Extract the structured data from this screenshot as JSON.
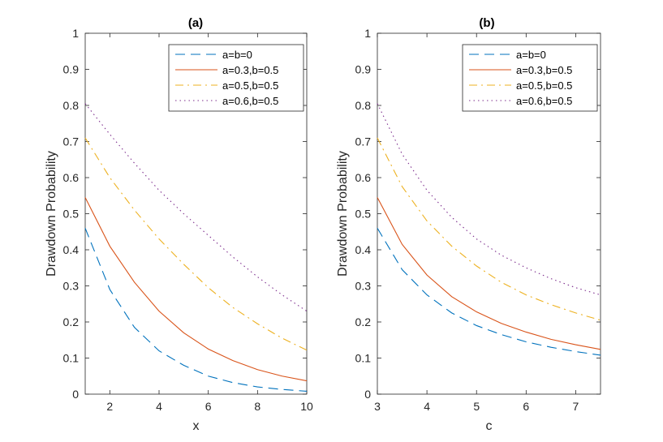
{
  "chart_data": [
    {
      "type": "line",
      "title": "(a)",
      "xlabel": "x",
      "ylabel": "Drawdown Probability",
      "xlim": [
        1,
        10
      ],
      "ylim": [
        0,
        1
      ],
      "xticks": [
        2,
        4,
        6,
        8,
        10
      ],
      "xtick_labels": [
        "2",
        "4",
        "6",
        "8",
        "10"
      ],
      "yticks": [
        0,
        0.1,
        0.2,
        0.3,
        0.4,
        0.5,
        0.6,
        0.7,
        0.8,
        0.9,
        1
      ],
      "ytick_labels": [
        "0",
        "0.1",
        "0.2",
        "0.3",
        "0.4",
        "0.5",
        "0.6",
        "0.7",
        "0.8",
        "0.9",
        "1"
      ],
      "grid": false,
      "legend_position": "top-right",
      "x": [
        1,
        2,
        3,
        4,
        5,
        6,
        7,
        8,
        9,
        10
      ],
      "series": [
        {
          "name": "a=b=0",
          "color": "#0072BD",
          "style": "dashed",
          "values": [
            0.46,
            0.29,
            0.185,
            0.12,
            0.08,
            0.05,
            0.032,
            0.02,
            0.013,
            0.008
          ]
        },
        {
          "name": "a=0.3,b=0.5",
          "color": "#D95319",
          "style": "solid",
          "values": [
            0.545,
            0.41,
            0.31,
            0.23,
            0.17,
            0.125,
            0.093,
            0.068,
            0.05,
            0.037
          ]
        },
        {
          "name": "a=0.5,b=0.5",
          "color": "#EDB120",
          "style": "dashdot",
          "values": [
            0.71,
            0.6,
            0.51,
            0.43,
            0.36,
            0.295,
            0.24,
            0.195,
            0.155,
            0.122
          ]
        },
        {
          "name": "a=0.6,b=0.5",
          "color": "#7E2F8E",
          "style": "dotted",
          "values": [
            0.805,
            0.72,
            0.64,
            0.565,
            0.5,
            0.44,
            0.38,
            0.325,
            0.275,
            0.23
          ]
        }
      ]
    },
    {
      "type": "line",
      "title": "(b)",
      "xlabel": "c",
      "ylabel": "Drawdown Probability",
      "xlim": [
        3,
        7.5
      ],
      "ylim": [
        0,
        1
      ],
      "xticks": [
        3,
        4,
        5,
        6,
        7
      ],
      "xtick_labels": [
        "3",
        "4",
        "5",
        "6",
        "7"
      ],
      "yticks": [
        0,
        0.1,
        0.2,
        0.3,
        0.4,
        0.5,
        0.6,
        0.7,
        0.8,
        0.9,
        1
      ],
      "ytick_labels": [
        "0",
        "0.1",
        "0.2",
        "0.3",
        "0.4",
        "0.5",
        "0.6",
        "0.7",
        "0.8",
        "0.9",
        "1"
      ],
      "grid": false,
      "legend_position": "top-right",
      "x": [
        3,
        3.5,
        4,
        4.5,
        5,
        5.5,
        6,
        6.5,
        7,
        7.5
      ],
      "series": [
        {
          "name": "a=b=0",
          "color": "#0072BD",
          "style": "dashed",
          "values": [
            0.46,
            0.345,
            0.275,
            0.225,
            0.19,
            0.165,
            0.145,
            0.13,
            0.118,
            0.108
          ]
        },
        {
          "name": "a=0.3,b=0.5",
          "color": "#D95319",
          "style": "solid",
          "values": [
            0.545,
            0.415,
            0.33,
            0.27,
            0.228,
            0.196,
            0.172,
            0.152,
            0.137,
            0.124
          ]
        },
        {
          "name": "a=0.5,b=0.5",
          "color": "#EDB120",
          "style": "dashdot",
          "values": [
            0.71,
            0.575,
            0.48,
            0.41,
            0.355,
            0.31,
            0.275,
            0.248,
            0.225,
            0.205
          ]
        },
        {
          "name": "a=0.6,b=0.5",
          "color": "#7E2F8E",
          "style": "dotted",
          "values": [
            0.805,
            0.665,
            0.565,
            0.49,
            0.43,
            0.385,
            0.35,
            0.32,
            0.295,
            0.275
          ]
        }
      ]
    }
  ]
}
